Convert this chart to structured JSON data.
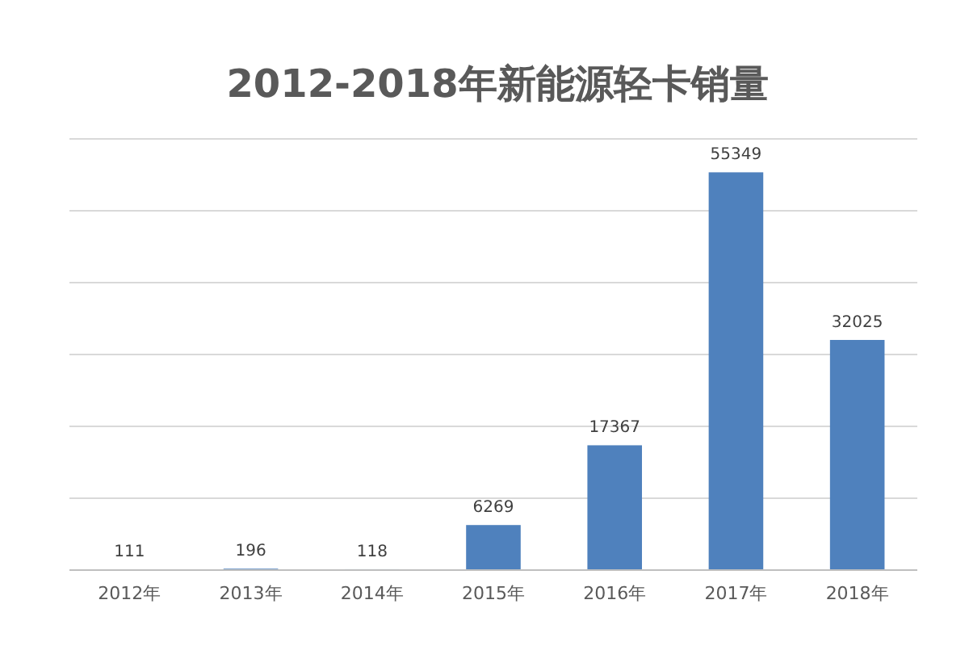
{
  "chart_data": {
    "type": "bar",
    "title": "2012-2018年新能源轻卡销量",
    "categories": [
      "2012年",
      "2013年",
      "2014年",
      "2015年",
      "2016年",
      "2017年",
      "2018年"
    ],
    "values": [
      111,
      196,
      118,
      6269,
      17367,
      55349,
      32025
    ],
    "color": "#4f81bd",
    "ylim": [
      0,
      60000
    ],
    "yticks": [
      {
        "value": 0,
        "label": null
      },
      {
        "value": 10000,
        "label": null
      },
      {
        "value": 20000,
        "label": null
      },
      {
        "value": 30000,
        "label": null
      },
      {
        "value": 40000,
        "label": null
      },
      {
        "value": 50000,
        "label": null
      },
      {
        "value": 60000,
        "label": null
      }
    ],
    "grid": "y",
    "tick_labels": "x",
    "data_labels": true
  }
}
